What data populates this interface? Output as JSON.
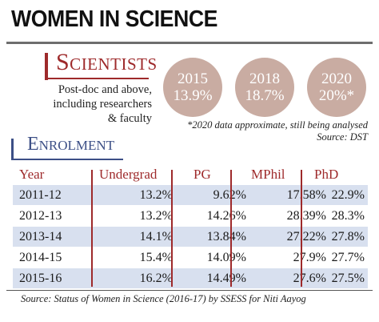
{
  "title": "WOMEN IN SCIENCE",
  "scientists": {
    "heading": "Scientists",
    "description_lines": [
      "Post-doc and above,",
      "including researchers",
      "& faculty"
    ],
    "stats": [
      {
        "year": "2015",
        "value": "13.9%"
      },
      {
        "year": "2018",
        "value": "18.7%"
      },
      {
        "year": "2020",
        "value": "20%*"
      }
    ],
    "footnote": "*2020 data approximate, still being analysed",
    "source": "Source: DST"
  },
  "enrolment": {
    "heading": "Enrolment",
    "columns": [
      "Year",
      "Undergrad",
      "PG",
      "MPhil",
      "PhD"
    ],
    "rows": [
      [
        "2011-12",
        "13.2%",
        "9.62%",
        "17.58%",
        "22.9%"
      ],
      [
        "2012-13",
        "13.2%",
        "14.26%",
        "28.39%",
        "28.3%"
      ],
      [
        "2013-14",
        "14.1%",
        "13.84%",
        "27.22%",
        "27.8%"
      ],
      [
        "2014-15",
        "15.4%",
        "14.09%",
        "27.9%",
        "27.7%"
      ],
      [
        "2015-16",
        "16.2%",
        "14.49%",
        "27.6%",
        "27.5%"
      ]
    ]
  },
  "source": "Source: Status of Women in Science (2016-17) by SSESS for Niti Aayog",
  "colors": {
    "accent_red": "#9e2a2b",
    "accent_blue": "#3c4f86",
    "circle_fill": "#c9aca2",
    "row_shade": "#d8e0ef"
  }
}
